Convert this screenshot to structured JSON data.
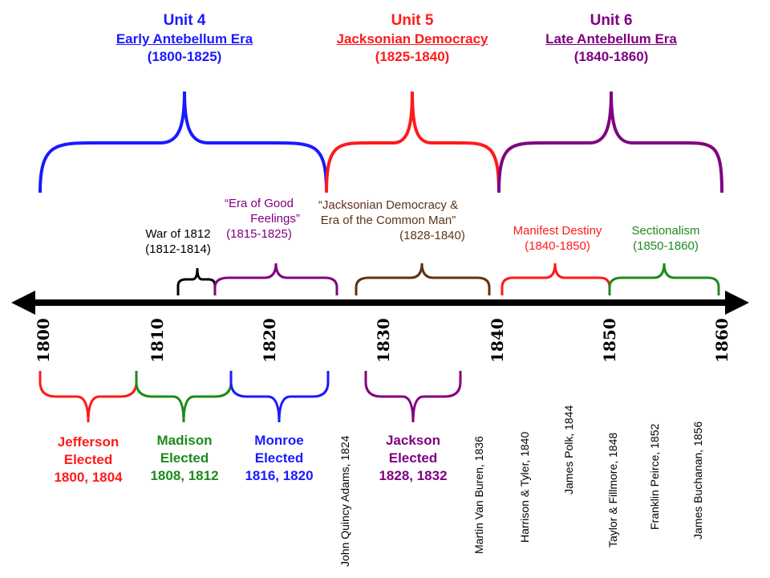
{
  "colors": {
    "unit4": "#1a1aff",
    "unit5": "#ff1a1a",
    "unit6": "#800080",
    "black": "#000000",
    "green": "#1e8a1e",
    "brown": "#5c3317"
  },
  "units": [
    {
      "title": "Unit 4",
      "era": "Early Antebellum Era",
      "years": "(1800-1825)"
    },
    {
      "title": "Unit 5",
      "era": "Jacksonian Democracy",
      "years": "(1825-1840)"
    },
    {
      "title": "Unit 6",
      "era": "Late Antebellum Era",
      "years": "(1840-1860)"
    }
  ],
  "periods": [
    {
      "line1": "War of 1812",
      "line2": "(1812-1814)"
    },
    {
      "line1": "“Era of Good",
      "line2": "Feelings”",
      "line3": "(1815-1825)"
    },
    {
      "line1": "“Jacksonian Democracy &",
      "line2": "Era of the Common Man”",
      "line3": "(1828-1840)"
    },
    {
      "line1": "Manifest Destiny",
      "line2": "(1840-1850)"
    },
    {
      "line1": "Sectionalism",
      "line2": "(1850-1860)"
    }
  ],
  "years": [
    "1800",
    "1810",
    "1820",
    "1830",
    "1840",
    "1850",
    "1860"
  ],
  "elections": [
    {
      "name": "Jefferson",
      "word": "Elected",
      "years": "1800, 1804"
    },
    {
      "name": "Madison",
      "word": "Elected",
      "years": "1808, 1812"
    },
    {
      "name": "Monroe",
      "word": "Elected",
      "years": "1816, 1820"
    },
    {
      "name": "Jackson",
      "word": "Elected",
      "years": "1828, 1832"
    }
  ],
  "presidents": [
    "John Quincy Adams, 1824",
    "Martin Van Buren, 1836",
    "Harrison & Tyler, 1840",
    "James Polk, 1844",
    "Taylor & Fillmore, 1848",
    "Franklin Peirce, 1852",
    "James Buchanan, 1856"
  ]
}
